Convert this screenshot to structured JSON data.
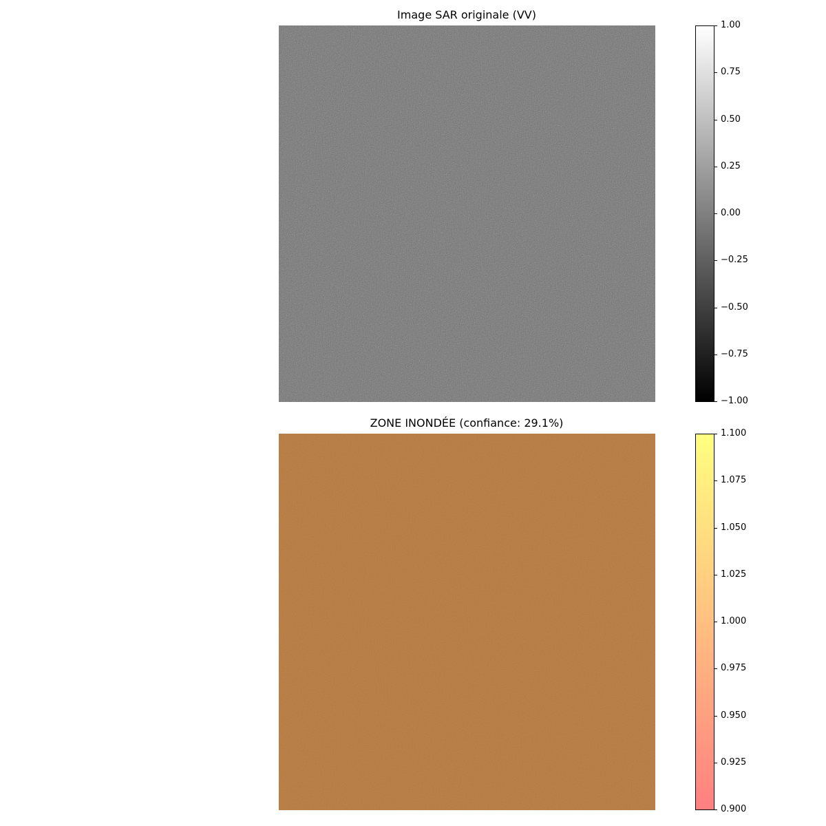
{
  "chart_data": [
    {
      "type": "heatmap",
      "title": "Image SAR originale (VV)",
      "colormap": "gray",
      "colorbar": {
        "range": [
          -1.0,
          1.0
        ],
        "ticks": [
          1.0,
          0.75,
          0.5,
          0.25,
          0.0,
          -0.25,
          -0.5,
          -0.75,
          -1.0
        ],
        "tick_labels": [
          "1.00",
          "0.75",
          "0.50",
          "0.25",
          "0.00",
          "−0.25",
          "−0.50",
          "−0.75",
          "−1.00"
        ],
        "colors": [
          "#000000",
          "#ffffff"
        ]
      },
      "axes_visible": false
    },
    {
      "type": "heatmap",
      "title": "ZONE INONDÉE (confiance: 29.1%)",
      "colormap": "autumn (alpha overlay on SAR image)",
      "colorbar": {
        "range": [
          0.9,
          1.1
        ],
        "ticks": [
          1.1,
          1.075,
          1.05,
          1.025,
          1.0,
          0.975,
          0.95,
          0.925,
          0.9
        ],
        "tick_labels": [
          "1.100",
          "1.075",
          "1.050",
          "1.025",
          "1.000",
          "0.975",
          "0.950",
          "0.925",
          "0.900"
        ],
        "colors": [
          "#ff8080",
          "#ffff80"
        ]
      },
      "axes_visible": false,
      "overlay_color": "#b8783a"
    }
  ]
}
